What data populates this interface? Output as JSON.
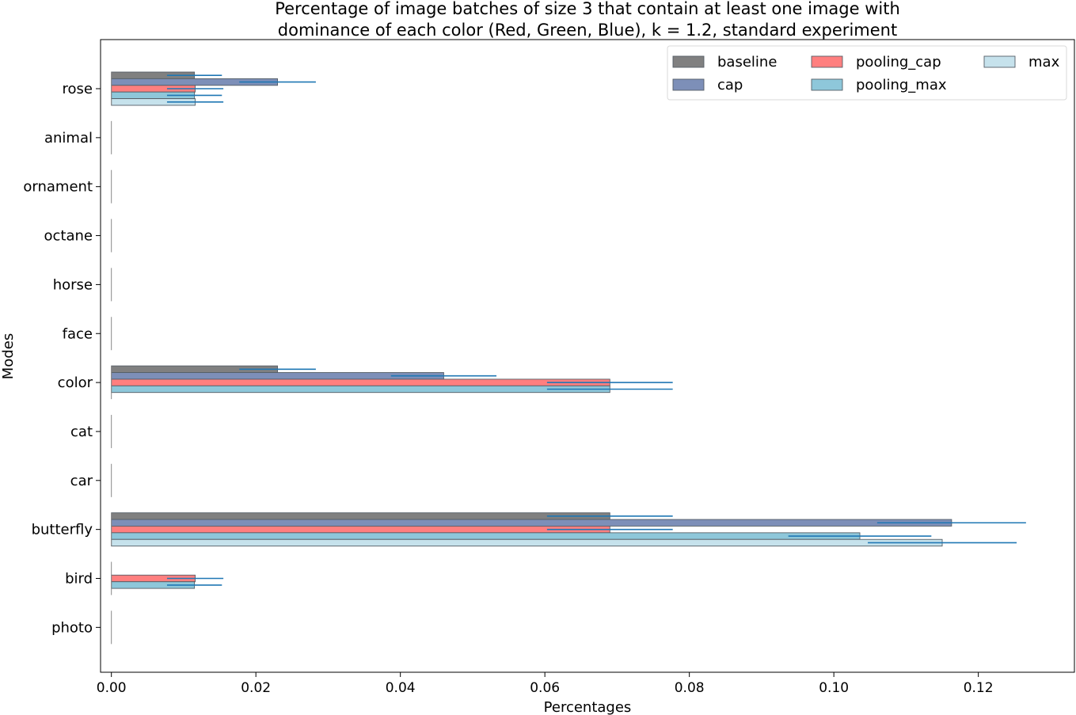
{
  "chart_data": {
    "type": "bar",
    "orientation": "horizontal",
    "title_lines": [
      "Percentage of image batches of size  3  that contain at least one image with",
      "dominance of each color (Red, Green, Blue), k = 1.2, standard experiment"
    ],
    "xlabel": "Percentages",
    "ylabel": "Modes",
    "xlim": [
      -0.0015,
      0.1333
    ],
    "x_ticks": [
      0.0,
      0.02,
      0.04,
      0.06,
      0.08,
      0.1,
      0.12
    ],
    "x_tick_labels": [
      "0.00",
      "0.02",
      "0.04",
      "0.06",
      "0.08",
      "0.10",
      "0.12"
    ],
    "categories": [
      "rose",
      "animal",
      "ornament",
      "octane",
      "horse",
      "face",
      "color",
      "cat",
      "car",
      "butterfly",
      "bird",
      "photo"
    ],
    "series": [
      {
        "name": "baseline",
        "color": "#808080",
        "values": [
          0.0115,
          0,
          0,
          0,
          0,
          0,
          0.023,
          0,
          0,
          0.069,
          0,
          0
        ],
        "errors": [
          0.0038,
          0,
          0,
          0,
          0,
          0,
          0.0053,
          0,
          0,
          0.0087,
          0,
          0
        ]
      },
      {
        "name": "cap",
        "color": "#7d8fb8",
        "values": [
          0.023,
          0,
          0,
          0,
          0,
          0,
          0.046,
          0,
          0,
          0.1163,
          0,
          0
        ],
        "errors": [
          0.0053,
          0,
          0,
          0,
          0,
          0,
          0.0073,
          0,
          0,
          0.0103,
          0,
          0
        ]
      },
      {
        "name": "pooling_cap",
        "color": "#ff7f7f",
        "values": [
          0.0116,
          0,
          0,
          0,
          0,
          0,
          0.069,
          0,
          0,
          0.069,
          0.0116,
          0
        ],
        "errors": [
          0.0039,
          0,
          0,
          0,
          0,
          0,
          0.0087,
          0,
          0,
          0.0087,
          0.0039,
          0
        ]
      },
      {
        "name": "pooling_max",
        "color": "#8ec7da",
        "values": [
          0.0115,
          0,
          0,
          0,
          0,
          0,
          0.069,
          0,
          0,
          0.1036,
          0.0115,
          0
        ],
        "errors": [
          0.0038,
          0,
          0,
          0,
          0,
          0,
          0.0087,
          0,
          0,
          0.0099,
          0.0038,
          0
        ]
      },
      {
        "name": "max",
        "color": "#c6e2ec",
        "values": [
          0.0116,
          0,
          0,
          0,
          0,
          0,
          0,
          0,
          0,
          0.115,
          0,
          0
        ],
        "errors": [
          0.0039,
          0,
          0,
          0,
          0,
          0,
          0,
          0,
          0,
          0.0103,
          0,
          0
        ]
      }
    ],
    "error_bar_color": "#1f77b4",
    "legend_position": "upper right",
    "legend_columns": 3,
    "grid": false
  }
}
